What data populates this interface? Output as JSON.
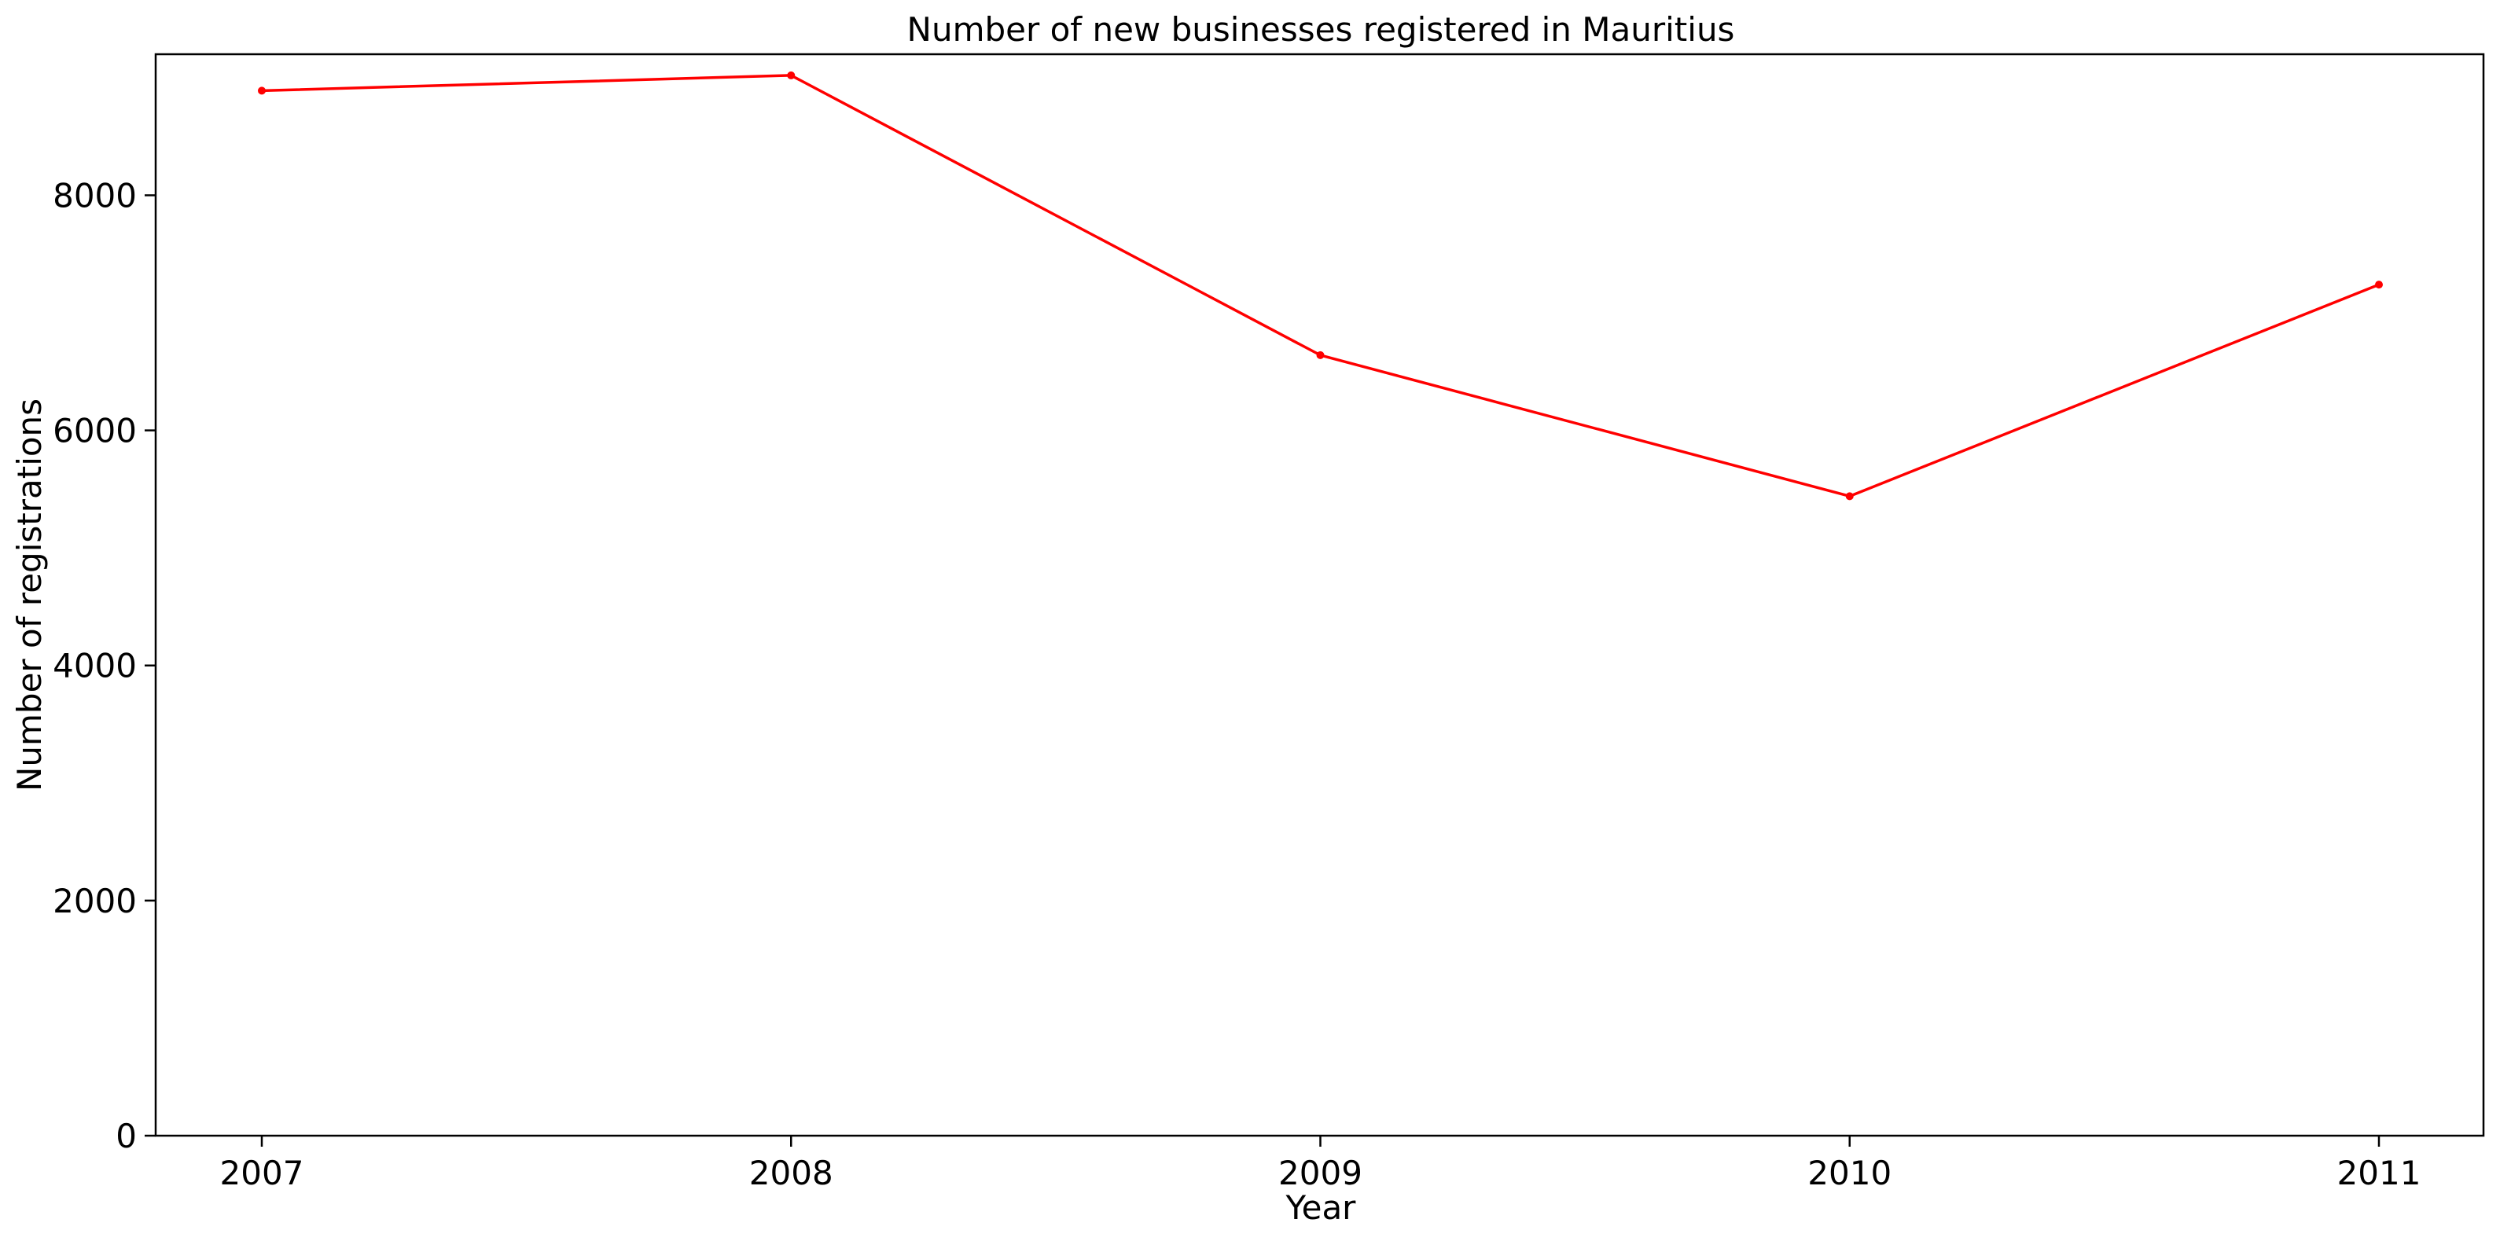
{
  "chart_data": {
    "type": "line",
    "title": "Number of new businesses registered in Mauritius",
    "xlabel": "Year",
    "ylabel": "Number of registrations",
    "x": [
      "2007",
      "2008",
      "2009",
      "2010",
      "2011"
    ],
    "series": [
      {
        "values": [
          8890,
          9020,
          6640,
          5440,
          7240
        ],
        "color": "#ff0000",
        "marker": "dot"
      }
    ],
    "ylim": [
      0,
      9200
    ],
    "yticks": [
      0,
      2000,
      4000,
      6000,
      8000
    ],
    "grid": false,
    "legend": "none"
  }
}
